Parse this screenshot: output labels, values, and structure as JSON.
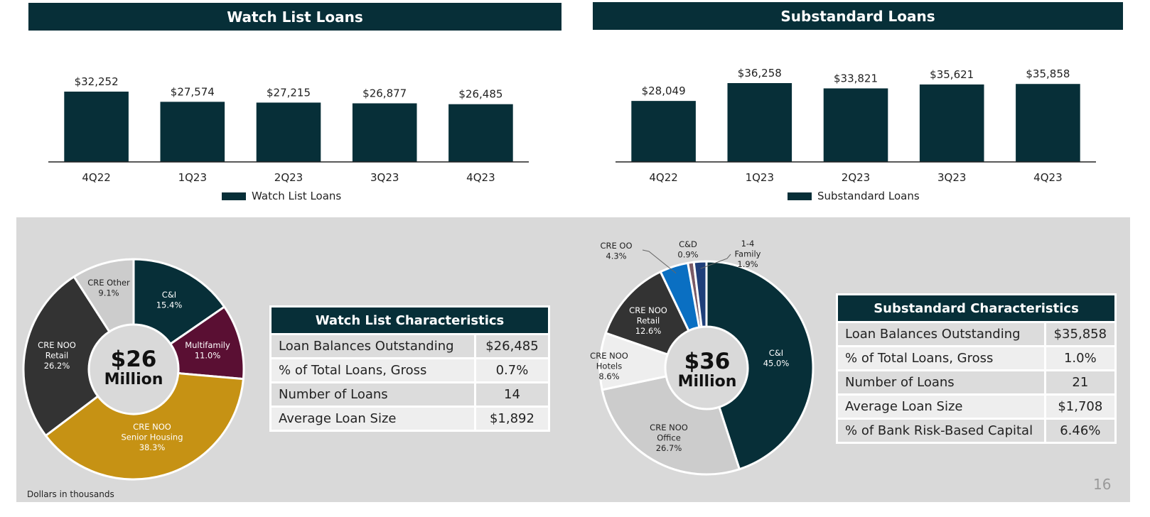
{
  "chart_data": [
    {
      "type": "bar",
      "title": "Watch List Loans",
      "categories": [
        "4Q22",
        "1Q23",
        "2Q23",
        "3Q23",
        "4Q23"
      ],
      "series": [
        {
          "name": "Watch List Loans",
          "values": [
            32252,
            27574,
            27215,
            26877,
            26485
          ]
        }
      ],
      "data_labels": [
        "$32,252",
        "$27,574",
        "$27,215",
        "$26,877",
        "$26,485"
      ],
      "ylim": [
        0,
        36000
      ],
      "legend": "bottom",
      "grid": false
    },
    {
      "type": "bar",
      "title": "Substandard Loans",
      "categories": [
        "4Q22",
        "1Q23",
        "2Q23",
        "3Q23",
        "4Q23"
      ],
      "series": [
        {
          "name": "Substandard Loans",
          "values": [
            28049,
            36258,
            33821,
            35621,
            35858
          ]
        }
      ],
      "data_labels": [
        "$28,049",
        "$36,258",
        "$33,821",
        "$35,621",
        "$35,858"
      ],
      "ylim": [
        0,
        40000
      ],
      "legend": "bottom",
      "grid": false
    },
    {
      "type": "pie",
      "center_label": {
        "big": "$26",
        "small": "Million"
      },
      "slices": [
        {
          "name": "C&I",
          "value": 15.4,
          "label": "15.4%",
          "color": "#072f38",
          "text_color": "#ffffff"
        },
        {
          "name": "Multifamily",
          "value": 11.0,
          "label": "11.0%",
          "color": "#5a0f33",
          "text_color": "#ffffff"
        },
        {
          "name": "CRE NOO Senior Housing",
          "value": 38.3,
          "label": "38.3%",
          "color": "#c69214",
          "text_color": "#ffffff"
        },
        {
          "name": "CRE NOO Retail",
          "value": 26.2,
          "label": "26.2%",
          "color": "#333333",
          "text_color": "#ffffff"
        },
        {
          "name": "CRE Other",
          "value": 9.1,
          "label": "9.1%",
          "color": "#cccccc",
          "text_color": "#222222"
        }
      ]
    },
    {
      "type": "pie",
      "center_label": {
        "big": "$36",
        "small": "Million"
      },
      "slices": [
        {
          "name": "C&I",
          "value": 45.0,
          "label": "45.0%",
          "color": "#072f38",
          "text_color": "#ffffff"
        },
        {
          "name": "CRE NOO Office",
          "value": 26.7,
          "label": "26.7%",
          "color": "#cccccc",
          "text_color": "#222222"
        },
        {
          "name": "CRE NOO Hotels",
          "value": 8.6,
          "label": "8.6%",
          "color": "#eeeeee",
          "text_color": "#222222"
        },
        {
          "name": "CRE NOO Retail",
          "value": 12.6,
          "label": "12.6%",
          "color": "#333333",
          "text_color": "#ffffff"
        },
        {
          "name": "CRE OO",
          "value": 4.3,
          "label": "4.3%",
          "color": "#0a6fc2",
          "text_color": "#222222"
        },
        {
          "name": "C&D",
          "value": 0.9,
          "label": "0.9%",
          "color": "#7a5a66",
          "text_color": "#222222"
        },
        {
          "name": "1-4 Family",
          "value": 1.9,
          "label": "1.9%",
          "color": "#1f3f7a",
          "text_color": "#222222"
        }
      ]
    }
  ],
  "watch_table": {
    "title": "Watch List Characteristics",
    "rows": [
      {
        "label": "Loan Balances Outstanding",
        "value": "$26,485"
      },
      {
        "label": "% of Total Loans, Gross",
        "value": "0.7%"
      },
      {
        "label": "Number of Loans",
        "value": "14"
      },
      {
        "label": "Average Loan Size",
        "value": "$1,892"
      }
    ]
  },
  "sub_table": {
    "title": "Substandard Characteristics",
    "rows": [
      {
        "label": "Loan Balances Outstanding",
        "value": "$35,858"
      },
      {
        "label": "% of Total Loans, Gross",
        "value": "1.0%"
      },
      {
        "label": "Number of Loans",
        "value": "21"
      },
      {
        "label": "Average Loan Size",
        "value": "$1,708"
      },
      {
        "label": "% of Bank Risk-Based Capital",
        "value": "6.46%"
      }
    ]
  },
  "footnote": "Dollars in thousands",
  "page_number": "16",
  "colors": {
    "navy": "#072f38",
    "panel": "#d9d9d9",
    "gold": "#c69214",
    "maroon": "#5a0f33",
    "blue": "#0a6fc2"
  }
}
